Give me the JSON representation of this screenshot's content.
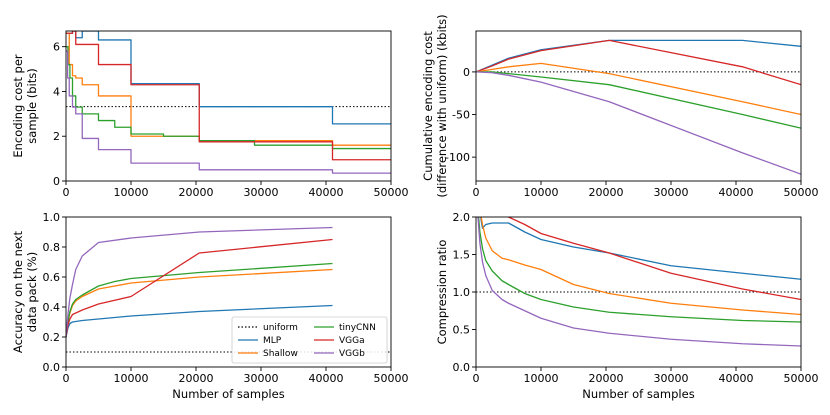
{
  "colors": {
    "uniform": "#000000",
    "MLP": "#1f77b4",
    "Shallow": "#ff7f0e",
    "tinyCNN": "#2ca02c",
    "VGGa": "#d62728",
    "VGGb": "#9467bd"
  },
  "legend": {
    "placement": "lower-right",
    "entries": [
      "uniform",
      "MLP",
      "Shallow",
      "tinyCNN",
      "VGGa",
      "VGGb"
    ]
  },
  "chart_data": [
    {
      "id": "encoding-cost",
      "type": "line",
      "step": true,
      "xlabel": "",
      "ylabel": [
        "Encoding cost per",
        "sample (bits)"
      ],
      "xlim": [
        0,
        50000
      ],
      "ylim": [
        0,
        6.7
      ],
      "xticks": [
        0,
        10000,
        20000,
        30000,
        40000,
        50000
      ],
      "yticks": [
        0,
        2,
        4,
        6
      ],
      "hline": 3.32,
      "series": [
        {
          "name": "MLP",
          "x": [
            0,
            1000,
            1500,
            2500,
            5000,
            10000,
            20500,
            41000,
            50000
          ],
          "y": [
            6.6,
            6.7,
            6.4,
            6.7,
            6.3,
            4.35,
            3.32,
            2.55,
            2.55
          ]
        },
        {
          "name": "Shallow",
          "x": [
            0,
            500,
            1000,
            1500,
            2500,
            5000,
            10000,
            20500,
            41000,
            50000
          ],
          "y": [
            6.6,
            5.2,
            4.7,
            4.6,
            4.3,
            3.8,
            2.0,
            1.8,
            1.6,
            1.6
          ]
        },
        {
          "name": "tinyCNN",
          "x": [
            0,
            300,
            600,
            1000,
            1500,
            2500,
            5000,
            7500,
            10000,
            15000,
            20500,
            29000,
            41000,
            50000
          ],
          "y": [
            6.0,
            5.2,
            4.6,
            3.8,
            3.3,
            3.0,
            2.7,
            2.4,
            2.1,
            2.0,
            1.8,
            1.6,
            1.45,
            1.45
          ]
        },
        {
          "name": "VGGa",
          "x": [
            0,
            1000,
            1500,
            5000,
            10000,
            20500,
            41000,
            50000
          ],
          "y": [
            6.6,
            6.7,
            6.1,
            5.2,
            4.3,
            1.75,
            0.95,
            0.95
          ]
        },
        {
          "name": "VGGb",
          "x": [
            0,
            250,
            500,
            1000,
            1500,
            2500,
            5000,
            10000,
            20500,
            41000,
            50000
          ],
          "y": [
            5.8,
            4.6,
            3.8,
            3.3,
            3.0,
            1.9,
            1.4,
            0.8,
            0.5,
            0.35,
            0.35
          ]
        }
      ]
    },
    {
      "id": "cumulative-cost",
      "type": "line",
      "xlabel": "",
      "ylabel": [
        "Cumulative encoding cost",
        "(difference with uniform) (kbits)"
      ],
      "xlim": [
        0,
        50000
      ],
      "ylim": [
        -128,
        48
      ],
      "xticks": [
        0,
        10000,
        20000,
        30000,
        40000,
        50000
      ],
      "yticks": [
        -100,
        -50,
        0
      ],
      "hline": 0,
      "series": [
        {
          "name": "MLP",
          "x": [
            0,
            2500,
            5000,
            10000,
            20500,
            41000,
            50000
          ],
          "y": [
            0,
            8,
            16,
            26,
            37,
            37,
            30
          ]
        },
        {
          "name": "VGGa",
          "x": [
            0,
            2500,
            5000,
            10000,
            20500,
            41000,
            50000
          ],
          "y": [
            0,
            7,
            15,
            25,
            37,
            6,
            -15
          ]
        },
        {
          "name": "Shallow",
          "x": [
            0,
            2500,
            5000,
            10000,
            20500,
            41000,
            50000
          ],
          "y": [
            0,
            3,
            6,
            10,
            -2,
            -35,
            -50
          ]
        },
        {
          "name": "tinyCNN",
          "x": [
            0,
            2500,
            5000,
            10000,
            20500,
            41000,
            50000
          ],
          "y": [
            0,
            0,
            -2,
            -6,
            -15,
            -50,
            -66
          ]
        },
        {
          "name": "VGGb",
          "x": [
            0,
            2500,
            5000,
            10000,
            20500,
            41000,
            50000
          ],
          "y": [
            0,
            -1,
            -4,
            -12,
            -35,
            -95,
            -120
          ]
        }
      ]
    },
    {
      "id": "accuracy",
      "type": "line",
      "xlabel": "Number of samples",
      "ylabel": [
        "Accuracy on the next",
        "data pack (%)"
      ],
      "xlim": [
        0,
        50000
      ],
      "ylim": [
        0,
        1.0
      ],
      "xticks": [
        0,
        10000,
        20000,
        30000,
        40000,
        50000
      ],
      "yticks": [
        0.0,
        0.2,
        0.4,
        0.6,
        0.8,
        1.0
      ],
      "hline": 0.1,
      "series": [
        {
          "name": "MLP",
          "x": [
            0,
            300,
            600,
            1000,
            2500,
            5000,
            10000,
            20500,
            41000
          ],
          "y": [
            0.2,
            0.26,
            0.29,
            0.3,
            0.31,
            0.32,
            0.34,
            0.37,
            0.41
          ]
        },
        {
          "name": "Shallow",
          "x": [
            0,
            300,
            600,
            1000,
            1500,
            2500,
            5000,
            10000,
            20500,
            41000
          ],
          "y": [
            0.2,
            0.3,
            0.36,
            0.41,
            0.44,
            0.47,
            0.52,
            0.56,
            0.6,
            0.65
          ]
        },
        {
          "name": "tinyCNN",
          "x": [
            0,
            300,
            600,
            1000,
            1500,
            2500,
            5000,
            7500,
            10000,
            20500,
            41000
          ],
          "y": [
            0.2,
            0.3,
            0.37,
            0.42,
            0.45,
            0.48,
            0.54,
            0.57,
            0.59,
            0.63,
            0.69
          ]
        },
        {
          "name": "VGGa",
          "x": [
            0,
            300,
            600,
            1000,
            2500,
            5000,
            10000,
            20500,
            41000
          ],
          "y": [
            0.2,
            0.28,
            0.32,
            0.35,
            0.38,
            0.42,
            0.47,
            0.76,
            0.85
          ]
        },
        {
          "name": "VGGb",
          "x": [
            0,
            300,
            600,
            1000,
            1500,
            2500,
            5000,
            10000,
            20500,
            41000
          ],
          "y": [
            0.2,
            0.35,
            0.46,
            0.55,
            0.65,
            0.74,
            0.83,
            0.86,
            0.9,
            0.93
          ]
        }
      ]
    },
    {
      "id": "compression-ratio",
      "type": "line",
      "xlabel": "Number of samples",
      "ylabel": [
        "Compression ratio"
      ],
      "xlim": [
        0,
        50000
      ],
      "ylim": [
        0,
        2.0
      ],
      "xticks": [
        0,
        10000,
        20000,
        30000,
        40000,
        50000
      ],
      "yticks": [
        0.0,
        0.5,
        1.0,
        1.5,
        2.0
      ],
      "hline": 1.0,
      "series": [
        {
          "name": "MLP",
          "x": [
            300,
            500,
            800,
            1000,
            1500,
            2500,
            5000,
            7500,
            10000,
            15000,
            20500,
            30000,
            41000,
            50000
          ],
          "y": [
            2.6,
            2.2,
            1.95,
            1.85,
            1.9,
            1.92,
            1.92,
            1.8,
            1.7,
            1.6,
            1.52,
            1.35,
            1.25,
            1.17
          ]
        },
        {
          "name": "VGGa",
          "x": [
            1500,
            2500,
            5000,
            7500,
            10000,
            15000,
            20500,
            30000,
            41000,
            50000
          ],
          "y": [
            2.5,
            2.2,
            2.0,
            1.9,
            1.78,
            1.65,
            1.52,
            1.25,
            1.04,
            0.9
          ]
        },
        {
          "name": "Shallow",
          "x": [
            300,
            600,
            1000,
            1500,
            2500,
            4000,
            5000,
            7500,
            10000,
            15000,
            20500,
            30000,
            41000,
            50000
          ],
          "y": [
            2.4,
            2.1,
            1.9,
            1.72,
            1.55,
            1.45,
            1.43,
            1.36,
            1.3,
            1.1,
            0.98,
            0.85,
            0.76,
            0.7
          ]
        },
        {
          "name": "tinyCNN",
          "x": [
            300,
            600,
            1000,
            1500,
            2500,
            4000,
            5000,
            7500,
            10000,
            15000,
            20500,
            30000,
            41000,
            50000
          ],
          "y": [
            2.1,
            1.8,
            1.58,
            1.42,
            1.28,
            1.15,
            1.1,
            0.98,
            0.9,
            0.8,
            0.73,
            0.67,
            0.62,
            0.6
          ]
        },
        {
          "name": "VGGb",
          "x": [
            300,
            600,
            1000,
            1500,
            2500,
            4000,
            5000,
            7500,
            10000,
            15000,
            20500,
            30000,
            41000,
            50000
          ],
          "y": [
            2.0,
            1.65,
            1.4,
            1.22,
            1.02,
            0.9,
            0.85,
            0.75,
            0.65,
            0.52,
            0.45,
            0.37,
            0.31,
            0.28
          ]
        }
      ]
    }
  ]
}
